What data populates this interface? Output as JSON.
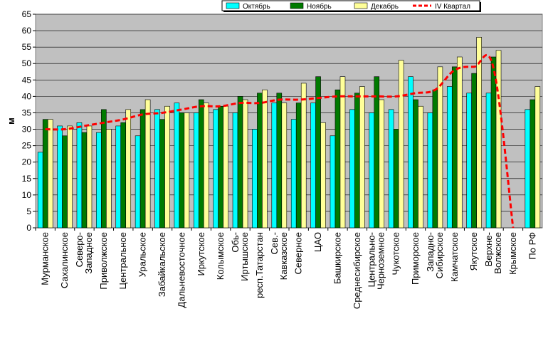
{
  "chart_data": {
    "type": "bar",
    "ylabel": "м",
    "ylim": [
      0,
      65
    ],
    "ytick_step": 5,
    "grid": "horizontal",
    "legend_position": "top-right",
    "categories": [
      "Мурманское",
      "Сахалинское",
      "Северо-Западное",
      "Приволжское",
      "Центральное",
      "Уральское",
      "Забайкальское",
      "Дальневосточное",
      "Иркутское",
      "Колымское",
      "Обь-Иртышское",
      "респ.Татарстан",
      "Сев.-Кавказское",
      "Северное",
      "ЦАО",
      "Башкирское",
      "Среднесибирское",
      "Центрально-Черноземное",
      "Чукотское",
      "Приморское",
      "Западно-Сибирское",
      "Камчатское",
      "Якутское",
      "Верхне-Волжское",
      "Крымское",
      "По РФ"
    ],
    "category_label_lines": [
      [
        "Мурманское"
      ],
      [
        "Сахалинское"
      ],
      [
        "Северо-",
        "Западное"
      ],
      [
        "Приволжское"
      ],
      [
        "Центральное"
      ],
      [
        "Уральское"
      ],
      [
        "Забайкальское"
      ],
      [
        "Дальневосточное"
      ],
      [
        "Иркутское"
      ],
      [
        "Колымское"
      ],
      [
        "Обь-",
        "Иртышское"
      ],
      [
        "респ.Татарстан"
      ],
      [
        "Сев.-",
        "Кавказское"
      ],
      [
        "Северное"
      ],
      [
        "ЦАО"
      ],
      [
        "Башкирское"
      ],
      [
        "Среднесибирское"
      ],
      [
        "Центрально-",
        "Черноземное"
      ],
      [
        "Чукотское"
      ],
      [
        "Приморское"
      ],
      [
        "Западно-",
        "Сибирское"
      ],
      [
        "Камчатское"
      ],
      [
        "Якутское"
      ],
      [
        "Верхне-",
        "Волжское"
      ],
      [
        "Крымское"
      ],
      [
        "По РФ"
      ]
    ],
    "series": [
      {
        "name": "Октябрь",
        "color": "#00ffff",
        "values": [
          23,
          31,
          32,
          29,
          31,
          28,
          36,
          38,
          35,
          36,
          35,
          30,
          38,
          33,
          38,
          28,
          36,
          35,
          36,
          46,
          35,
          43,
          41,
          41,
          0,
          36
        ]
      },
      {
        "name": "Ноябрь",
        "color": "#007a00",
        "values": [
          33,
          28,
          29,
          36,
          32,
          36,
          33,
          35,
          39,
          37,
          40,
          41,
          41,
          38,
          46,
          42,
          41,
          46,
          30,
          39,
          42,
          49,
          47,
          52,
          0,
          39
        ]
      },
      {
        "name": "Декабрь",
        "color": "#ffff99",
        "values": [
          33,
          31,
          31,
          30,
          36,
          39,
          37,
          35,
          38,
          37,
          39,
          42,
          38,
          44,
          32,
          46,
          43,
          39,
          51,
          37,
          49,
          52,
          58,
          54,
          0,
          43
        ]
      }
    ],
    "line_series": {
      "name": "IV Квартал",
      "color": "#ff0000",
      "values": [
        30,
        30,
        31,
        32,
        33,
        34.5,
        35,
        36,
        37,
        37,
        38,
        38,
        39,
        39,
        39.5,
        40,
        40,
        40,
        40,
        41,
        42,
        48,
        49,
        48.5,
        0,
        null
      ]
    }
  }
}
